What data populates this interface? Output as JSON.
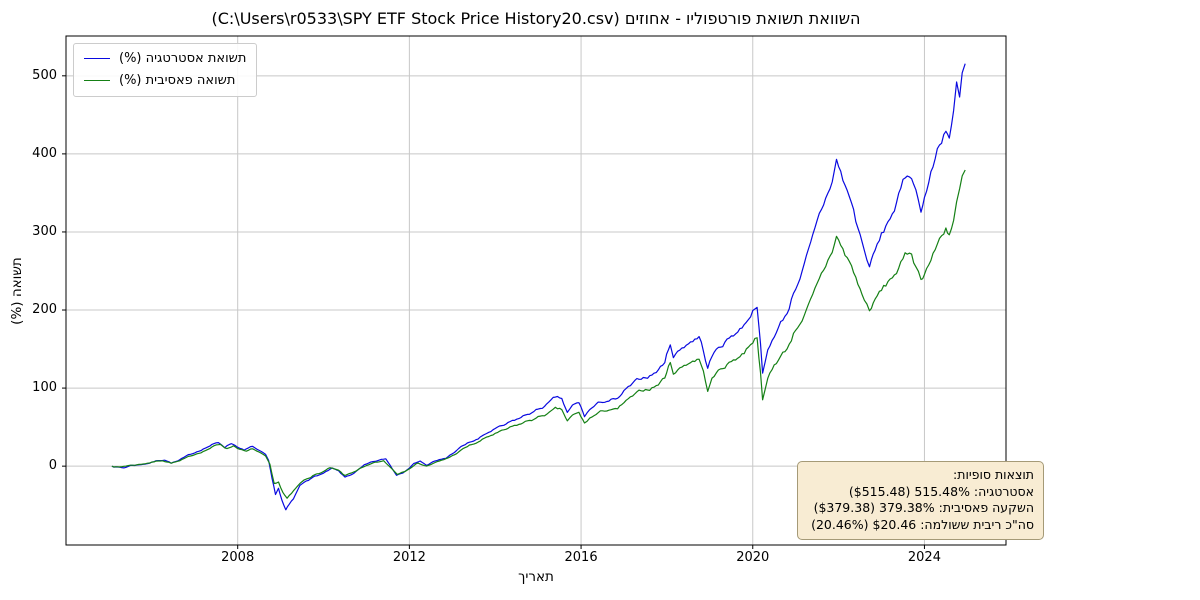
{
  "title": "השוואת תשואת פורטפוליו - אחוזים (C:\\Users\\r0533\\SPY ETF Stock Price History20.csv)",
  "xlabel": "תאריך",
  "ylabel": "תשואה (%)",
  "legend": {
    "items": [
      {
        "label": "תשואת אסטרטגיה (%)",
        "color": "#0a0ae0"
      },
      {
        "label": "תשואה פאסיבית (%)",
        "color": "#158015"
      }
    ]
  },
  "annotation": {
    "bg": "#f8ecd3",
    "border": "#a59a77",
    "lines": [
      "תוצאות סופיות:",
      "אסטרטגיה: 515.48% ($515.48)",
      "השקעה פאסיבית: 379.38% ($379.38)",
      "סה\"כ ריבית ששולמה: $20.46 (20.46%)"
    ]
  },
  "chart_data": {
    "type": "line",
    "title": "השוואת תשואת פורטפוליו - אחוזים (C:\\Users\\r0533\\SPY ETF Stock Price History20.csv)",
    "xlabel": "תאריך",
    "ylabel": "תשואה (%)",
    "xlim": [
      2004.0,
      2025.9
    ],
    "ylim": [
      -101,
      551
    ],
    "xticks": [
      2008,
      2012,
      2016,
      2020,
      2024
    ],
    "yticks": [
      0,
      100,
      200,
      300,
      400,
      500
    ],
    "grid": true,
    "grid_color": "#c8c8c8",
    "legend_position": "upper left",
    "series": [
      {
        "name": "תשואת אסטרטגיה (%)",
        "color": "#0a0ae0",
        "final_value": 515.48,
        "points": [
          [
            2005.07,
            0
          ],
          [
            2005.2,
            -1
          ],
          [
            2005.35,
            -2
          ],
          [
            2005.5,
            1
          ],
          [
            2005.7,
            2
          ],
          [
            2005.9,
            4
          ],
          [
            2006.1,
            7
          ],
          [
            2006.3,
            9
          ],
          [
            2006.45,
            5
          ],
          [
            2006.6,
            7
          ],
          [
            2006.8,
            12
          ],
          [
            2007.0,
            17
          ],
          [
            2007.2,
            23
          ],
          [
            2007.4,
            28
          ],
          [
            2007.55,
            30
          ],
          [
            2007.7,
            25
          ],
          [
            2007.85,
            30
          ],
          [
            2008.0,
            26
          ],
          [
            2008.15,
            21
          ],
          [
            2008.35,
            25
          ],
          [
            2008.5,
            19
          ],
          [
            2008.65,
            13
          ],
          [
            2008.72,
            5
          ],
          [
            2008.8,
            -18
          ],
          [
            2008.88,
            -38
          ],
          [
            2008.95,
            -30
          ],
          [
            2009.03,
            -45
          ],
          [
            2009.12,
            -58
          ],
          [
            2009.2,
            -52
          ],
          [
            2009.3,
            -45
          ],
          [
            2009.45,
            -28
          ],
          [
            2009.6,
            -20
          ],
          [
            2009.8,
            -14
          ],
          [
            2010.0,
            -10
          ],
          [
            2010.2,
            -4
          ],
          [
            2010.35,
            -8
          ],
          [
            2010.5,
            -16
          ],
          [
            2010.65,
            -12
          ],
          [
            2010.8,
            -6
          ],
          [
            2010.95,
            0
          ],
          [
            2011.1,
            3
          ],
          [
            2011.3,
            6
          ],
          [
            2011.45,
            8
          ],
          [
            2011.6,
            -4
          ],
          [
            2011.7,
            -12
          ],
          [
            2011.85,
            -8
          ],
          [
            2011.95,
            -3
          ],
          [
            2012.1,
            4
          ],
          [
            2012.25,
            8
          ],
          [
            2012.4,
            2
          ],
          [
            2012.55,
            6
          ],
          [
            2012.7,
            8
          ],
          [
            2012.85,
            10
          ],
          [
            2013.0,
            16
          ],
          [
            2013.2,
            24
          ],
          [
            2013.4,
            30
          ],
          [
            2013.6,
            34
          ],
          [
            2013.8,
            41
          ],
          [
            2014.0,
            47
          ],
          [
            2014.2,
            50
          ],
          [
            2014.4,
            55
          ],
          [
            2014.6,
            60
          ],
          [
            2014.8,
            66
          ],
          [
            2015.0,
            71
          ],
          [
            2015.2,
            78
          ],
          [
            2015.4,
            85
          ],
          [
            2015.55,
            83
          ],
          [
            2015.68,
            65
          ],
          [
            2015.8,
            74
          ],
          [
            2015.95,
            78
          ],
          [
            2016.08,
            61
          ],
          [
            2016.2,
            70
          ],
          [
            2016.35,
            76
          ],
          [
            2016.5,
            80
          ],
          [
            2016.7,
            84
          ],
          [
            2016.85,
            83
          ],
          [
            2017.0,
            93
          ],
          [
            2017.2,
            101
          ],
          [
            2017.4,
            108
          ],
          [
            2017.6,
            114
          ],
          [
            2017.8,
            122
          ],
          [
            2017.95,
            133
          ],
          [
            2018.08,
            158
          ],
          [
            2018.15,
            142
          ],
          [
            2018.3,
            150
          ],
          [
            2018.45,
            158
          ],
          [
            2018.6,
            164
          ],
          [
            2018.75,
            168
          ],
          [
            2018.85,
            150
          ],
          [
            2018.95,
            128
          ],
          [
            2019.05,
            142
          ],
          [
            2019.2,
            152
          ],
          [
            2019.35,
            160
          ],
          [
            2019.5,
            168
          ],
          [
            2019.65,
            175
          ],
          [
            2019.8,
            183
          ],
          [
            2019.95,
            198
          ],
          [
            2020.1,
            213
          ],
          [
            2020.18,
            160
          ],
          [
            2020.23,
            122
          ],
          [
            2020.35,
            150
          ],
          [
            2020.5,
            170
          ],
          [
            2020.65,
            185
          ],
          [
            2020.8,
            198
          ],
          [
            2020.95,
            225
          ],
          [
            2021.1,
            248
          ],
          [
            2021.25,
            268
          ],
          [
            2021.4,
            288
          ],
          [
            2021.55,
            312
          ],
          [
            2021.7,
            335
          ],
          [
            2021.85,
            362
          ],
          [
            2021.95,
            388
          ],
          [
            2022.05,
            372
          ],
          [
            2022.15,
            355
          ],
          [
            2022.3,
            335
          ],
          [
            2022.4,
            312
          ],
          [
            2022.5,
            295
          ],
          [
            2022.6,
            272
          ],
          [
            2022.72,
            256
          ],
          [
            2022.85,
            272
          ],
          [
            2022.95,
            285
          ],
          [
            2023.1,
            302
          ],
          [
            2023.25,
            322
          ],
          [
            2023.4,
            342
          ],
          [
            2023.55,
            362
          ],
          [
            2023.7,
            372
          ],
          [
            2023.8,
            352
          ],
          [
            2023.92,
            332
          ],
          [
            2024.0,
            348
          ],
          [
            2024.1,
            368
          ],
          [
            2024.2,
            385
          ],
          [
            2024.3,
            405
          ],
          [
            2024.4,
            420
          ],
          [
            2024.5,
            438
          ],
          [
            2024.58,
            428
          ],
          [
            2024.68,
            455
          ],
          [
            2024.75,
            488
          ],
          [
            2024.82,
            468
          ],
          [
            2024.88,
            495
          ],
          [
            2024.95,
            515.48
          ]
        ]
      },
      {
        "name": "תשואה פאסיבית (%)",
        "color": "#158015",
        "final_value": 379.38,
        "points": [
          [
            2005.07,
            0
          ],
          [
            2005.25,
            -1
          ],
          [
            2005.45,
            1
          ],
          [
            2005.65,
            2
          ],
          [
            2005.85,
            4
          ],
          [
            2006.05,
            6
          ],
          [
            2006.25,
            8
          ],
          [
            2006.45,
            5
          ],
          [
            2006.65,
            7
          ],
          [
            2006.85,
            11
          ],
          [
            2007.05,
            16
          ],
          [
            2007.25,
            21
          ],
          [
            2007.45,
            26
          ],
          [
            2007.6,
            28
          ],
          [
            2007.75,
            23
          ],
          [
            2007.9,
            27
          ],
          [
            2008.05,
            23
          ],
          [
            2008.2,
            19
          ],
          [
            2008.35,
            22
          ],
          [
            2008.5,
            17
          ],
          [
            2008.65,
            11
          ],
          [
            2008.75,
            0
          ],
          [
            2008.85,
            -25
          ],
          [
            2008.95,
            -22
          ],
          [
            2009.05,
            -35
          ],
          [
            2009.15,
            -43
          ],
          [
            2009.25,
            -38
          ],
          [
            2009.4,
            -28
          ],
          [
            2009.55,
            -20
          ],
          [
            2009.75,
            -13
          ],
          [
            2009.95,
            -9
          ],
          [
            2010.15,
            -3
          ],
          [
            2010.35,
            -7
          ],
          [
            2010.5,
            -14
          ],
          [
            2010.65,
            -10
          ],
          [
            2010.85,
            -4
          ],
          [
            2011.0,
            -1
          ],
          [
            2011.2,
            3
          ],
          [
            2011.4,
            5
          ],
          [
            2011.6,
            -5
          ],
          [
            2011.72,
            -11
          ],
          [
            2011.9,
            -6
          ],
          [
            2012.05,
            0
          ],
          [
            2012.2,
            5
          ],
          [
            2012.4,
            1
          ],
          [
            2012.6,
            5
          ],
          [
            2012.8,
            8
          ],
          [
            2013.0,
            13
          ],
          [
            2013.2,
            20
          ],
          [
            2013.4,
            26
          ],
          [
            2013.6,
            30
          ],
          [
            2013.8,
            36
          ],
          [
            2014.0,
            41
          ],
          [
            2014.2,
            44
          ],
          [
            2014.4,
            48
          ],
          [
            2014.6,
            52
          ],
          [
            2014.8,
            57
          ],
          [
            2015.0,
            61
          ],
          [
            2015.2,
            66
          ],
          [
            2015.4,
            71
          ],
          [
            2015.55,
            69
          ],
          [
            2015.68,
            55
          ],
          [
            2015.8,
            62
          ],
          [
            2015.95,
            65
          ],
          [
            2016.08,
            52
          ],
          [
            2016.2,
            59
          ],
          [
            2016.35,
            64
          ],
          [
            2016.5,
            68
          ],
          [
            2016.7,
            72
          ],
          [
            2016.85,
            71
          ],
          [
            2017.0,
            79
          ],
          [
            2017.2,
            86
          ],
          [
            2017.4,
            92
          ],
          [
            2017.6,
            97
          ],
          [
            2017.8,
            104
          ],
          [
            2017.95,
            113
          ],
          [
            2018.08,
            133
          ],
          [
            2018.15,
            120
          ],
          [
            2018.3,
            126
          ],
          [
            2018.45,
            132
          ],
          [
            2018.6,
            137
          ],
          [
            2018.75,
            140
          ],
          [
            2018.85,
            122
          ],
          [
            2018.95,
            99
          ],
          [
            2019.05,
            113
          ],
          [
            2019.2,
            122
          ],
          [
            2019.35,
            129
          ],
          [
            2019.5,
            135
          ],
          [
            2019.65,
            141
          ],
          [
            2019.8,
            147
          ],
          [
            2019.95,
            160
          ],
          [
            2020.1,
            170
          ],
          [
            2020.18,
            125
          ],
          [
            2020.23,
            88
          ],
          [
            2020.35,
            115
          ],
          [
            2020.5,
            132
          ],
          [
            2020.65,
            143
          ],
          [
            2020.8,
            152
          ],
          [
            2020.95,
            172
          ],
          [
            2021.1,
            188
          ],
          [
            2021.25,
            202
          ],
          [
            2021.4,
            216
          ],
          [
            2021.55,
            232
          ],
          [
            2021.7,
            250
          ],
          [
            2021.85,
            272
          ],
          [
            2021.95,
            292
          ],
          [
            2022.05,
            280
          ],
          [
            2022.15,
            268
          ],
          [
            2022.3,
            254
          ],
          [
            2022.4,
            238
          ],
          [
            2022.5,
            226
          ],
          [
            2022.6,
            210
          ],
          [
            2022.72,
            199
          ],
          [
            2022.85,
            210
          ],
          [
            2022.95,
            219
          ],
          [
            2023.1,
            228
          ],
          [
            2023.25,
            240
          ],
          [
            2023.4,
            252
          ],
          [
            2023.55,
            264
          ],
          [
            2023.7,
            270
          ],
          [
            2023.8,
            256
          ],
          [
            2023.92,
            240
          ],
          [
            2024.0,
            250
          ],
          [
            2024.1,
            262
          ],
          [
            2024.2,
            272
          ],
          [
            2024.3,
            285
          ],
          [
            2024.4,
            296
          ],
          [
            2024.5,
            308
          ],
          [
            2024.58,
            302
          ],
          [
            2024.68,
            318
          ],
          [
            2024.75,
            338
          ],
          [
            2024.82,
            352
          ],
          [
            2024.88,
            368
          ],
          [
            2024.95,
            379.38
          ]
        ]
      }
    ]
  }
}
